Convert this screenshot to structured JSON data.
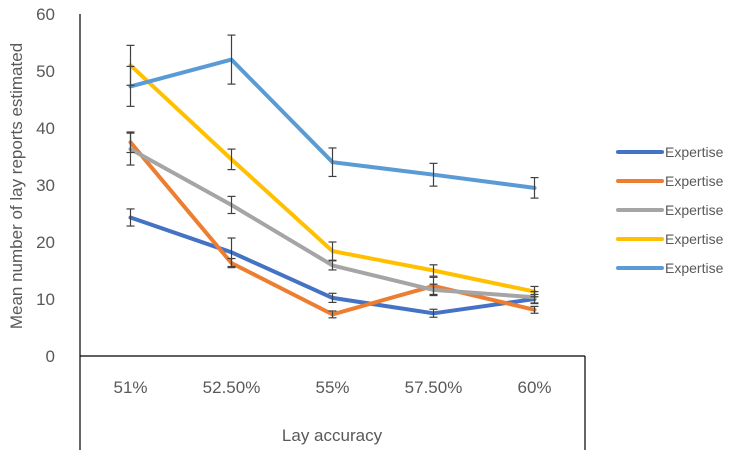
{
  "chart_data": {
    "type": "line",
    "categories": [
      "51%",
      "52.50%",
      "55%",
      "57.50%",
      "60%"
    ],
    "xlabel": "Lay accuracy",
    "ylabel": "Mean number of lay reports estimated",
    "ylim": [
      0,
      60
    ],
    "yticks": [
      0,
      10,
      20,
      30,
      40,
      50,
      60
    ],
    "grid": false,
    "legend_position": "right",
    "series": [
      {
        "name": "Expertise",
        "color": "#4472C4",
        "values": [
          24.3,
          18.2,
          10.2,
          7.5,
          10.0
        ],
        "errors": [
          1.5,
          2.5,
          0.8,
          0.7,
          0.8
        ]
      },
      {
        "name": "Expertise",
        "color": "#ED7D31",
        "values": [
          37.5,
          16.3,
          7.3,
          12.3,
          8.1
        ],
        "errors": [
          1.8,
          0.8,
          0.6,
          1.5,
          0.6
        ]
      },
      {
        "name": "Expertise",
        "color": "#A5A5A5",
        "values": [
          36.3,
          26.5,
          15.9,
          11.6,
          10.3
        ],
        "errors": [
          2.8,
          1.5,
          0.8,
          1.0,
          1.0
        ]
      },
      {
        "name": "Expertise",
        "color": "#FFC000",
        "values": [
          51.0,
          34.5,
          18.4,
          15.0,
          11.3
        ],
        "errors": [
          3.5,
          1.8,
          1.6,
          1.0,
          0.9
        ]
      },
      {
        "name": "Expertise",
        "color": "#5B9BD5",
        "values": [
          47.3,
          52.0,
          34.0,
          31.8,
          29.5
        ],
        "errors": [
          3.5,
          4.3,
          2.5,
          2.0,
          1.8
        ]
      }
    ]
  }
}
